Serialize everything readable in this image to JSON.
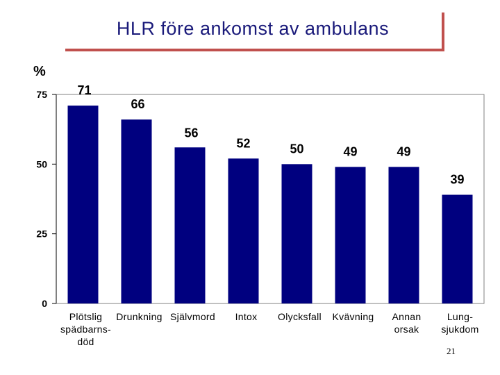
{
  "header": {
    "title": "HLR före ankomst av ambulans",
    "page_number": "21"
  },
  "chart_data": {
    "type": "bar",
    "title": "HLR före ankomst av ambulans",
    "ylabel": "%",
    "ylim": [
      0,
      75
    ],
    "yticks": [
      0,
      25,
      50,
      75
    ],
    "grid": false,
    "categories": [
      [
        "Plötslig",
        "spädbarns-",
        "död"
      ],
      [
        "Drunkning"
      ],
      [
        "Självmord"
      ],
      [
        "Intox"
      ],
      [
        "Olycksfall"
      ],
      [
        "Kvävning"
      ],
      [
        "Annan",
        "orsak"
      ],
      [
        "Lung-",
        "sjukdom"
      ]
    ],
    "values": [
      71,
      66,
      56,
      52,
      50,
      49,
      49,
      39
    ],
    "bar_color": "#00007f"
  }
}
